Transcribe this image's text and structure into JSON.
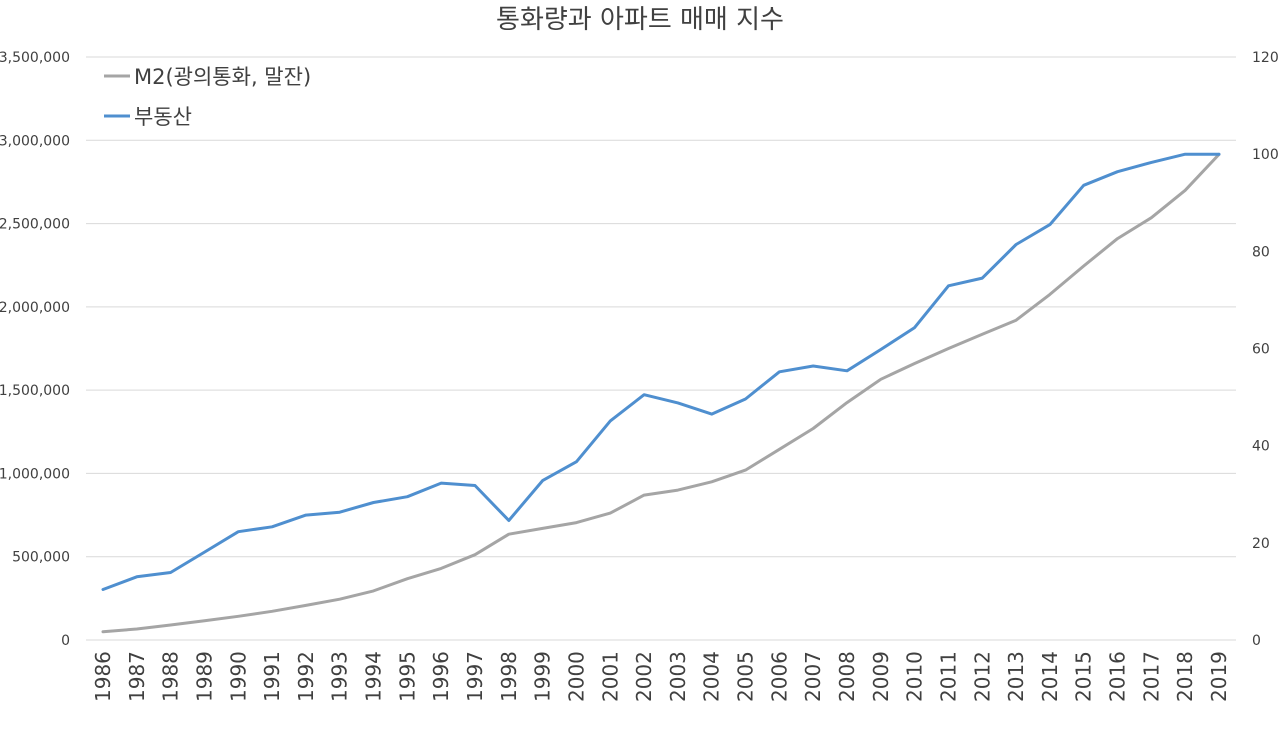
{
  "chart_data": {
    "type": "line",
    "title": "통화량과 아파트 매매 지수",
    "x": [
      "1986",
      "1987",
      "1988",
      "1989",
      "1990",
      "1991",
      "1992",
      "1993",
      "1994",
      "1995",
      "1996",
      "1997",
      "1998",
      "1999",
      "2000",
      "2001",
      "2002",
      "2003",
      "2004",
      "2005",
      "2006",
      "2007",
      "2008",
      "2009",
      "2010",
      "2011",
      "2012",
      "2013",
      "2014",
      "2015",
      "2016",
      "2017",
      "2018",
      "2019"
    ],
    "y_left": {
      "min": 0,
      "max": 3500000,
      "step": 500000,
      "tick_labels": [
        "0",
        "500,000",
        "1,000,000",
        "1,500,000",
        "2,000,000",
        "2,500,000",
        "3,000,000",
        "3,500,000"
      ]
    },
    "y_right": {
      "min": 0,
      "max": 120,
      "step": 20,
      "tick_labels": [
        "0",
        "20",
        "40",
        "60",
        "80",
        "100",
        "120"
      ]
    },
    "grid": true,
    "legend_position": "top-left",
    "series": [
      {
        "name": "M2(광의통화, 말잔)",
        "axis": "left",
        "color": "#a5a5a5",
        "values": [
          50000,
          66000,
          90000,
          115000,
          142000,
          172000,
          208000,
          245000,
          295000,
          368000,
          430000,
          512000,
          635000,
          670000,
          705000,
          762000,
          870000,
          900000,
          950000,
          1020000,
          1145000,
          1270000,
          1425000,
          1565000,
          1660000,
          1750000,
          1835000,
          1920000,
          2075000,
          2245000,
          2410000,
          2535000,
          2700000,
          2915000
        ]
      },
      {
        "name": "부동산",
        "axis": "right",
        "color": "#4f8fcf",
        "values": [
          10.4,
          13.0,
          13.9,
          18.1,
          22.3,
          23.3,
          25.7,
          26.3,
          28.3,
          29.5,
          32.3,
          31.8,
          24.6,
          32.8,
          36.7,
          45.1,
          50.5,
          48.8,
          46.5,
          49.6,
          55.2,
          56.4,
          55.4,
          59.8,
          64.3,
          72.9,
          74.5,
          81.4,
          85.5,
          93.6,
          96.4,
          98.3,
          100.0,
          100.0
        ]
      }
    ]
  }
}
